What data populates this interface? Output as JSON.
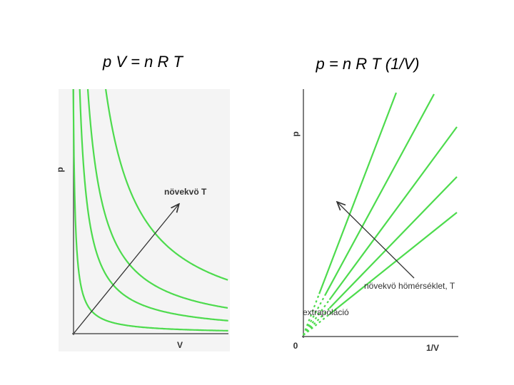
{
  "left": {
    "title": "p V = n R T",
    "y_label": "p",
    "x_label": "V",
    "arrow_label": "növekvö T"
  },
  "right": {
    "title": "p = n R T (1/V)",
    "y_label": "p",
    "x_label": "1/V",
    "origin_label": "0",
    "arrow_label": "növekvö hömérséklet, T",
    "extrapolation_label": "extrapoláció"
  }
}
